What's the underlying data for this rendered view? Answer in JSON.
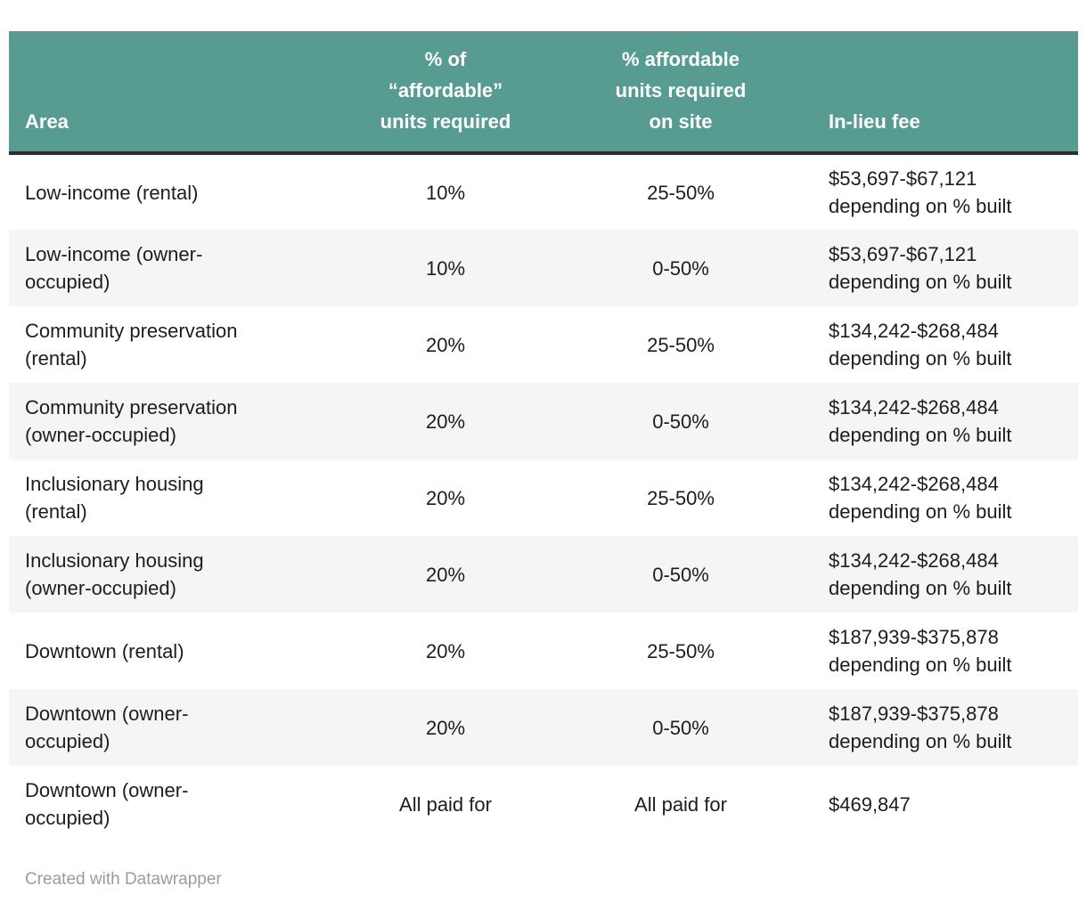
{
  "chart_data": {
    "type": "table",
    "columns": [
      "Area",
      "% of “affordable” units required",
      "% affordable units required on site",
      "In-lieu fee"
    ],
    "rows": [
      [
        "Low-income (rental)",
        "10%",
        "25-50%",
        "$53,697-$67,121 depending on % built"
      ],
      [
        "Low-income (owner-occupied)",
        "10%",
        "0-50%",
        "$53,697-$67,121 depending on % built"
      ],
      [
        "Community preservation (rental)",
        "20%",
        "25-50%",
        "$134,242-$268,484 depending on % built"
      ],
      [
        "Community preservation (owner-occupied)",
        "20%",
        "0-50%",
        "$134,242-$268,484 depending on % built"
      ],
      [
        "Inclusionary housing (rental)",
        "20%",
        "25-50%",
        "$134,242-$268,484 depending on % built"
      ],
      [
        "Inclusionary housing (owner-occupied)",
        "20%",
        "0-50%",
        "$134,242-$268,484 depending on % built"
      ],
      [
        "Downtown (rental)",
        "20%",
        "25-50%",
        "$187,939-$375,878 depending on % built"
      ],
      [
        "Downtown (owner-occupied)",
        "20%",
        "0-50%",
        "$187,939-$375,878 depending on % built"
      ],
      [
        "Downtown (owner-occupied)",
        "All paid for",
        "All paid for",
        "$469,847"
      ]
    ],
    "title": "",
    "legend": "none",
    "layout": {
      "header_align": [
        "left",
        "center",
        "center",
        "left"
      ],
      "body_align": [
        "left",
        "center",
        "center",
        "left"
      ],
      "striped_rows": "even"
    }
  },
  "render": {
    "header": {
      "area": "Area",
      "pct_required": [
        "% of",
        "“affordable”",
        "units required"
      ],
      "pct_on_site": [
        "% affordable",
        "units required",
        "on site"
      ],
      "fee": "In-lieu fee"
    },
    "rows": [
      {
        "area": [
          "Low-income (rental)",
          ""
        ],
        "pct": "10%",
        "onsite": "25-50%",
        "fee": [
          "$53,697-$67,121",
          "depending on % built"
        ]
      },
      {
        "area": [
          "Low-income (owner-",
          "occupied)"
        ],
        "pct": "10%",
        "onsite": "0-50%",
        "fee": [
          "$53,697-$67,121",
          "depending on % built"
        ]
      },
      {
        "area": [
          "Community preservation",
          "(rental)"
        ],
        "pct": "20%",
        "onsite": "25-50%",
        "fee": [
          "$134,242-$268,484",
          "depending on % built"
        ]
      },
      {
        "area": [
          "Community preservation",
          "(owner-occupied)"
        ],
        "pct": "20%",
        "onsite": "0-50%",
        "fee": [
          "$134,242-$268,484",
          "depending on % built"
        ]
      },
      {
        "area": [
          "Inclusionary housing",
          "(rental)"
        ],
        "pct": "20%",
        "onsite": "25-50%",
        "fee": [
          "$134,242-$268,484",
          "depending on % built"
        ]
      },
      {
        "area": [
          "Inclusionary housing",
          "(owner-occupied)"
        ],
        "pct": "20%",
        "onsite": "0-50%",
        "fee": [
          "$134,242-$268,484",
          "depending on % built"
        ]
      },
      {
        "area": [
          "Downtown (rental)",
          ""
        ],
        "pct": "20%",
        "onsite": "25-50%",
        "fee": [
          "$187,939-$375,878",
          "depending on % built"
        ]
      },
      {
        "area": [
          "Downtown (owner-",
          "occupied)"
        ],
        "pct": "20%",
        "onsite": "0-50%",
        "fee": [
          "$187,939-$375,878",
          "depending on % built"
        ]
      },
      {
        "area": [
          "Downtown (owner-",
          "occupied)"
        ],
        "pct": "All paid for",
        "onsite": "All paid for",
        "fee": [
          "$469,847",
          ""
        ]
      }
    ]
  },
  "footer": {
    "credit": "Created with Datawrapper"
  },
  "colors": {
    "header_background": "#579b91",
    "header_text": "#ffffff",
    "header_bottom_border": "#2e2e2e",
    "row_stripe": "#f5f5f5",
    "body_text": "#1d1d1d",
    "credit_text": "#9b9b9b",
    "page_background": "#ffffff"
  }
}
